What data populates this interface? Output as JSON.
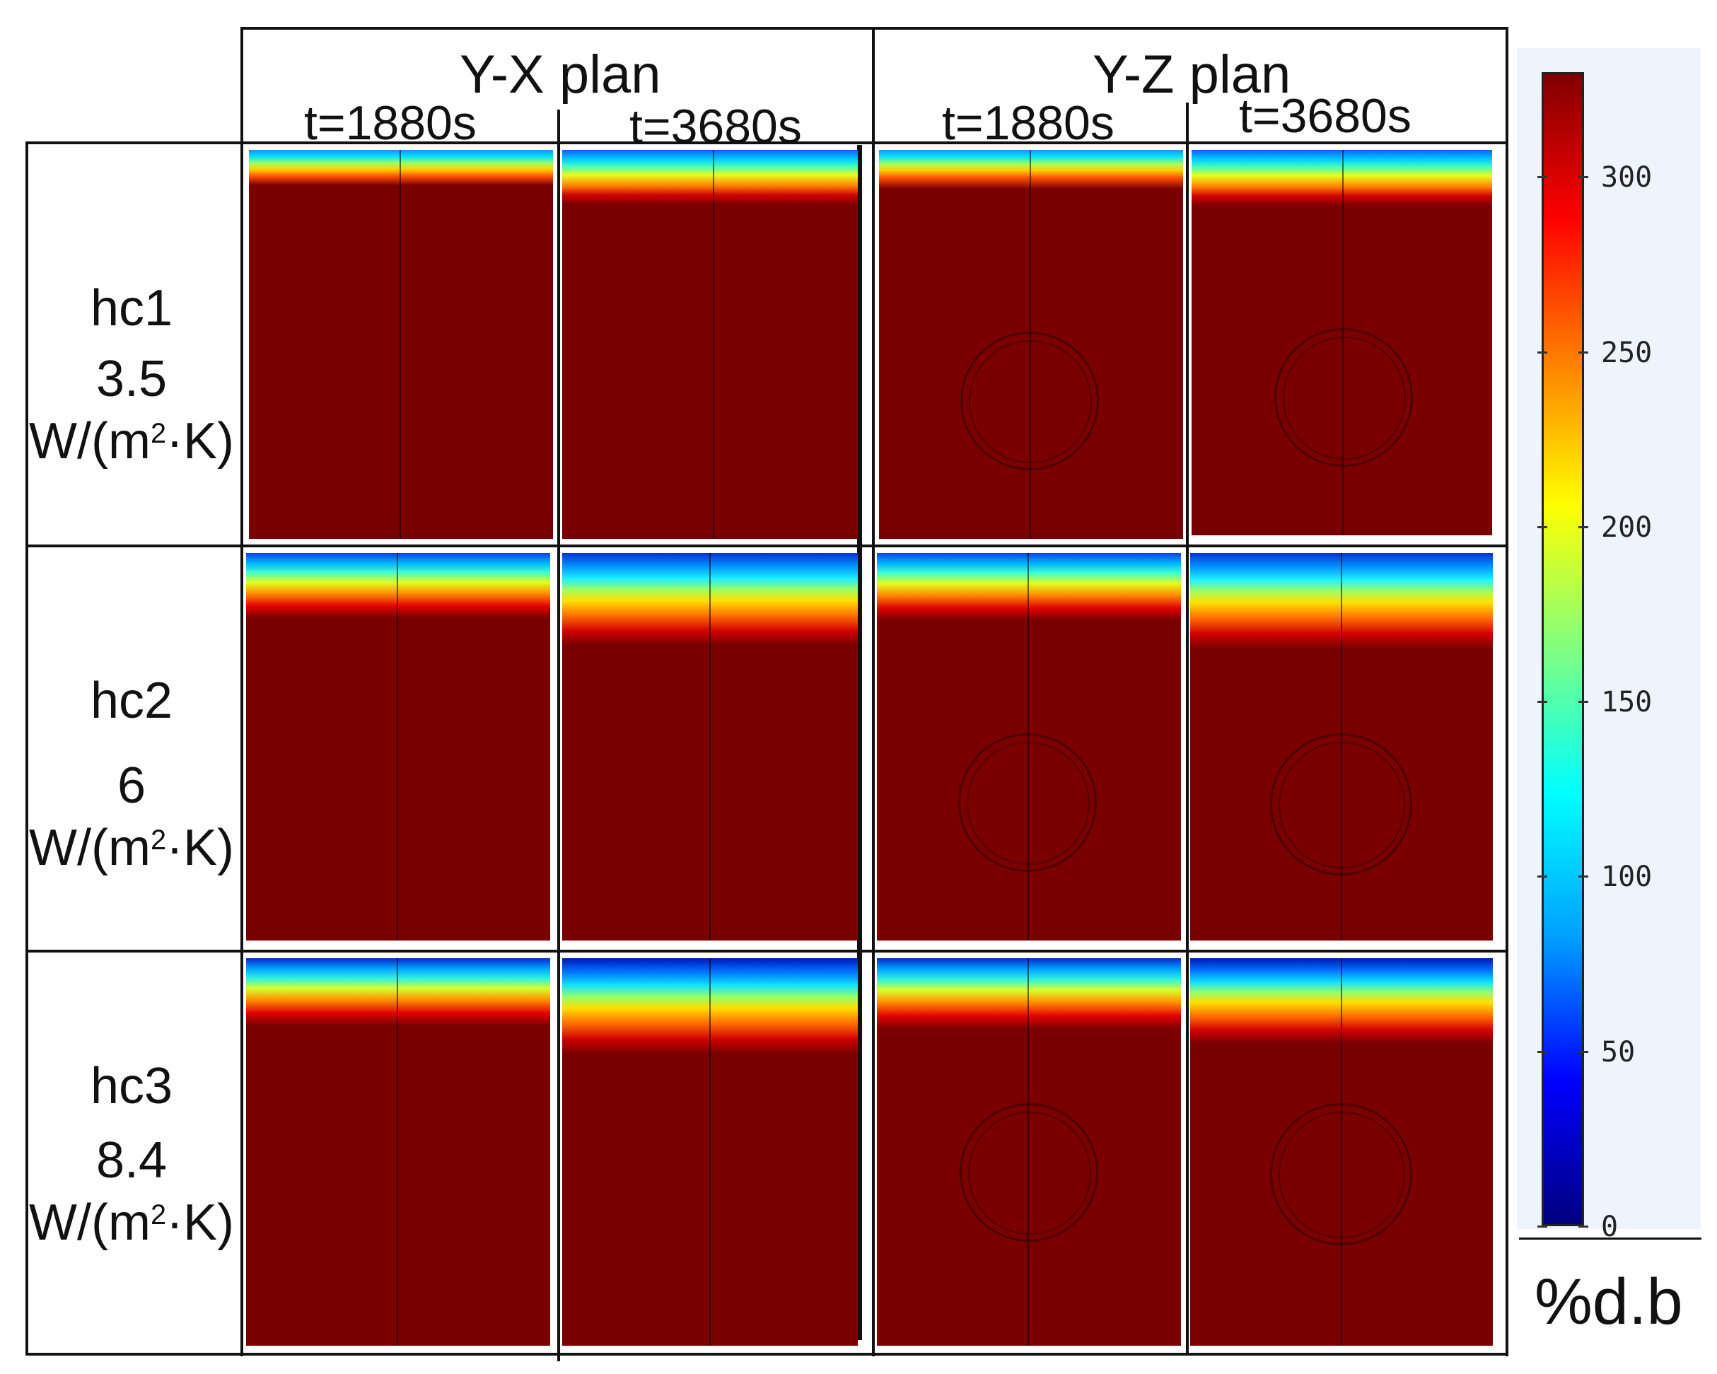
{
  "header": {
    "yx_plan": "Y-X plan",
    "yz_plan": "Y-Z plan",
    "times": [
      "t=1880s",
      "t=3680s",
      "t=1880s",
      "t=3680s"
    ]
  },
  "rows": [
    {
      "name": "hc1",
      "value": "3.5",
      "unit_prefix": "W/(m",
      "unit_sup": "2",
      "unit_suffix": "·K)"
    },
    {
      "name": "hc2",
      "value": "6",
      "unit_prefix": "W/(m",
      "unit_sup": "2",
      "unit_suffix": "·K)"
    },
    {
      "name": "hc3",
      "value": "8.4",
      "unit_prefix": "W/(m",
      "unit_sup": "2",
      "unit_suffix": "·K)"
    }
  ],
  "colorbar": {
    "ticks": [
      "300",
      "250",
      "200",
      "150",
      "100",
      "50",
      "0"
    ],
    "tick_values": [
      300,
      250,
      200,
      150,
      100,
      50,
      0
    ],
    "min": 0,
    "max": 330,
    "unit": "%d.b",
    "colors": [
      "#00007f",
      "#0000ff",
      "#00a0ff",
      "#00ffff",
      "#80ff80",
      "#ffff00",
      "#ff8000",
      "#ff0000",
      "#7f0000"
    ]
  }
}
